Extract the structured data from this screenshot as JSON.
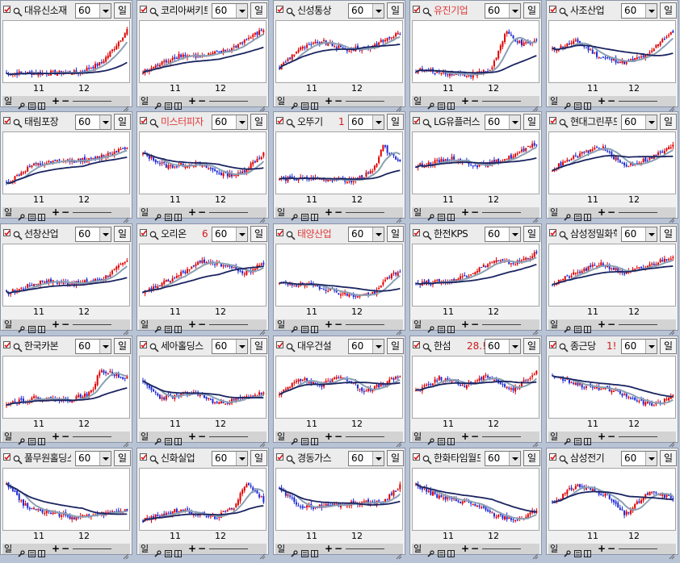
{
  "colors": {
    "up": "#e00000",
    "down": "#1d2bd6",
    "ma_long": "#1a2460",
    "ma_short": "#8aa0b4",
    "name_red": "#e23a3a",
    "badge": "#d01818"
  },
  "common": {
    "period": "60",
    "interval_button": "일",
    "toolbar_label": "일",
    "x_ticks": [
      "11",
      "12"
    ]
  },
  "panels": [
    {
      "name": "대유신소재",
      "name_red": false,
      "badge": ""
    },
    {
      "name": "코리아써키트",
      "name_red": false,
      "badge": ""
    },
    {
      "name": "신성통상",
      "name_red": false,
      "badge": ""
    },
    {
      "name": "유진기업",
      "name_red": true,
      "badge": ""
    },
    {
      "name": "사조산업",
      "name_red": false,
      "badge": ""
    },
    {
      "name": "태림포장",
      "name_red": false,
      "badge": ""
    },
    {
      "name": "미스터피자",
      "name_red": true,
      "badge": ""
    },
    {
      "name": "오뚜기",
      "name_red": false,
      "badge": "1"
    },
    {
      "name": "LG유플러스",
      "name_red": false,
      "badge": ""
    },
    {
      "name": "현대그린푸드",
      "name_red": false,
      "badge": ""
    },
    {
      "name": "선창산업",
      "name_red": false,
      "badge": ""
    },
    {
      "name": "오리온",
      "name_red": false,
      "badge": "6"
    },
    {
      "name": "태양산업",
      "name_red": true,
      "badge": ""
    },
    {
      "name": "한전KPS",
      "name_red": false,
      "badge": ""
    },
    {
      "name": "삼성정밀화학",
      "name_red": false,
      "badge": ""
    },
    {
      "name": "한국카본",
      "name_red": false,
      "badge": ""
    },
    {
      "name": "세아홀딩스",
      "name_red": false,
      "badge": ""
    },
    {
      "name": "대우건설",
      "name_red": false,
      "badge": ""
    },
    {
      "name": "한섬",
      "name_red": false,
      "badge": "28.!"
    },
    {
      "name": "종근당",
      "name_red": false,
      "badge": "1!"
    },
    {
      "name": "풀무원홀딩스",
      "name_red": false,
      "badge": ""
    },
    {
      "name": "신화실업",
      "name_red": false,
      "badge": ""
    },
    {
      "name": "경동가스",
      "name_red": false,
      "badge": ""
    },
    {
      "name": "한화타임월드",
      "name_red": false,
      "badge": ""
    },
    {
      "name": "삼성전기",
      "name_red": false,
      "badge": ""
    }
  ]
}
